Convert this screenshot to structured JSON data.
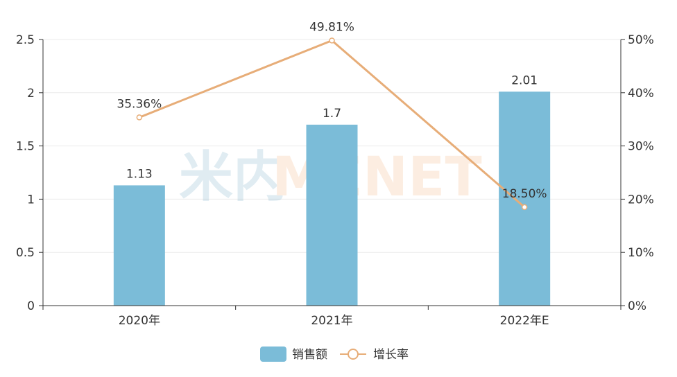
{
  "chart_data": {
    "type": "bar",
    "title": "",
    "xlabel": "",
    "ylabel": "",
    "categories": [
      "2020年",
      "2021年",
      "2022年E"
    ],
    "series": [
      {
        "name": "销售额",
        "type": "bar",
        "axis": "left",
        "values": [
          1.13,
          1.7,
          2.01
        ],
        "labels": [
          "1.13",
          "1.7",
          "2.01"
        ]
      },
      {
        "name": "增长率",
        "type": "line",
        "axis": "right",
        "values": [
          35.36,
          49.81,
          18.5
        ],
        "labels": [
          "35.36%",
          "49.81%",
          "18.50%"
        ]
      }
    ],
    "y_left": {
      "range": [
        0,
        2.5
      ],
      "ticks": [
        0,
        0.5,
        1,
        1.5,
        2,
        2.5
      ],
      "tick_labels": [
        "0",
        "0.5",
        "1",
        "1.5",
        "2",
        "2.5"
      ]
    },
    "y_right": {
      "range": [
        0,
        50
      ],
      "ticks": [
        0,
        10,
        20,
        30,
        40,
        50
      ],
      "tick_labels": [
        "0%",
        "10%",
        "20%",
        "30%",
        "40%",
        "50%"
      ]
    },
    "grid": true,
    "legend_position": "bottom-center",
    "colors": {
      "bar": "#7bbcd8",
      "line": "#e7ad78",
      "axis": "#333333",
      "grid": "#ebebeb"
    },
    "watermark": {
      "left": "米内",
      "right": "MENET"
    }
  }
}
